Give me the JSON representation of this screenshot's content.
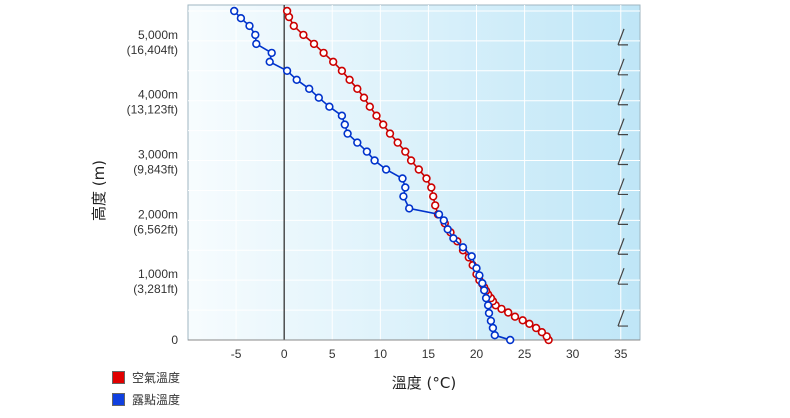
{
  "chart_data": {
    "type": "line",
    "xlabel": "溫度 (°C)",
    "ylabel": "高度 (m)",
    "xlim": [
      -10,
      37
    ],
    "ylim": [
      0,
      5600
    ],
    "x_ticks": [
      "-5",
      "0",
      "5",
      "10",
      "15",
      "20",
      "25",
      "30",
      "35"
    ],
    "x_tick_values": [
      -5,
      0,
      5,
      10,
      15,
      20,
      25,
      30,
      35
    ],
    "y_ticks": [
      {
        "value": 0,
        "label": "0",
        "sub": ""
      },
      {
        "value": 1000,
        "label": "1,000m",
        "sub": "(3,281ft)"
      },
      {
        "value": 2000,
        "label": "2,000m",
        "sub": "(6,562ft)"
      },
      {
        "value": 3000,
        "label": "3,000m",
        "sub": "(9,843ft)"
      },
      {
        "value": 4000,
        "label": "4,000m",
        "sub": "(13,123ft)"
      },
      {
        "value": 5000,
        "label": "5,000m",
        "sub": "(16,404ft)"
      }
    ],
    "grid": true,
    "background": "#bfe6f7",
    "legend_position": "bottom-left",
    "series": [
      {
        "name": "空氣溫度",
        "color": "#cc0000",
        "points": [
          [
            27.5,
            0
          ],
          [
            27.3,
            60
          ],
          [
            26.8,
            130
          ],
          [
            26.2,
            200
          ],
          [
            25.5,
            270
          ],
          [
            24.8,
            330
          ],
          [
            24.0,
            390
          ],
          [
            23.3,
            460
          ],
          [
            22.6,
            520
          ],
          [
            22.0,
            580
          ],
          [
            21.7,
            650
          ],
          [
            21.5,
            700
          ],
          [
            21.2,
            760
          ],
          [
            21.0,
            820
          ],
          [
            20.8,
            880
          ],
          [
            20.6,
            940
          ],
          [
            20.3,
            1000
          ],
          [
            20.0,
            1100
          ],
          [
            19.6,
            1250
          ],
          [
            19.2,
            1380
          ],
          [
            18.6,
            1500
          ],
          [
            18.0,
            1650
          ],
          [
            17.3,
            1800
          ],
          [
            16.7,
            1950
          ],
          [
            16.0,
            2100
          ],
          [
            15.7,
            2250
          ],
          [
            15.5,
            2400
          ],
          [
            15.3,
            2550
          ],
          [
            14.8,
            2700
          ],
          [
            14.0,
            2850
          ],
          [
            13.2,
            3000
          ],
          [
            12.6,
            3150
          ],
          [
            11.8,
            3300
          ],
          [
            11.0,
            3450
          ],
          [
            10.3,
            3600
          ],
          [
            9.6,
            3750
          ],
          [
            8.9,
            3900
          ],
          [
            8.3,
            4050
          ],
          [
            7.6,
            4200
          ],
          [
            6.8,
            4350
          ],
          [
            6.0,
            4500
          ],
          [
            5.1,
            4650
          ],
          [
            4.1,
            4800
          ],
          [
            3.1,
            4950
          ],
          [
            2.0,
            5100
          ],
          [
            1.0,
            5250
          ],
          [
            0.5,
            5400
          ],
          [
            0.3,
            5500
          ]
        ]
      },
      {
        "name": "露點溫度",
        "color": "#0033cc",
        "points": [
          [
            23.5,
            0
          ],
          [
            21.9,
            80
          ],
          [
            21.7,
            200
          ],
          [
            21.5,
            320
          ],
          [
            21.3,
            450
          ],
          [
            21.2,
            580
          ],
          [
            21.0,
            700
          ],
          [
            20.8,
            830
          ],
          [
            20.6,
            950
          ],
          [
            20.3,
            1080
          ],
          [
            20.0,
            1200
          ],
          [
            19.5,
            1400
          ],
          [
            18.6,
            1550
          ],
          [
            17.6,
            1700
          ],
          [
            17.0,
            1850
          ],
          [
            16.6,
            2000
          ],
          [
            16.1,
            2100
          ],
          [
            13.0,
            2200
          ],
          [
            12.4,
            2400
          ],
          [
            12.6,
            2550
          ],
          [
            12.3,
            2700
          ],
          [
            10.6,
            2850
          ],
          [
            9.4,
            3000
          ],
          [
            8.6,
            3150
          ],
          [
            7.6,
            3300
          ],
          [
            6.6,
            3450
          ],
          [
            6.3,
            3600
          ],
          [
            6.0,
            3750
          ],
          [
            4.7,
            3900
          ],
          [
            3.6,
            4050
          ],
          [
            2.6,
            4200
          ],
          [
            1.3,
            4350
          ],
          [
            0.3,
            4500
          ],
          [
            -1.5,
            4650
          ],
          [
            -1.3,
            4800
          ],
          [
            -2.9,
            4950
          ],
          [
            -3.0,
            5100
          ],
          [
            -3.6,
            5250
          ],
          [
            -4.5,
            5380
          ],
          [
            -5.2,
            5500
          ]
        ]
      }
    ],
    "wind_barb_altitudes": [
      300,
      1000,
      1500,
      2000,
      2500,
      3000,
      3500,
      4000,
      4500,
      5000
    ]
  }
}
